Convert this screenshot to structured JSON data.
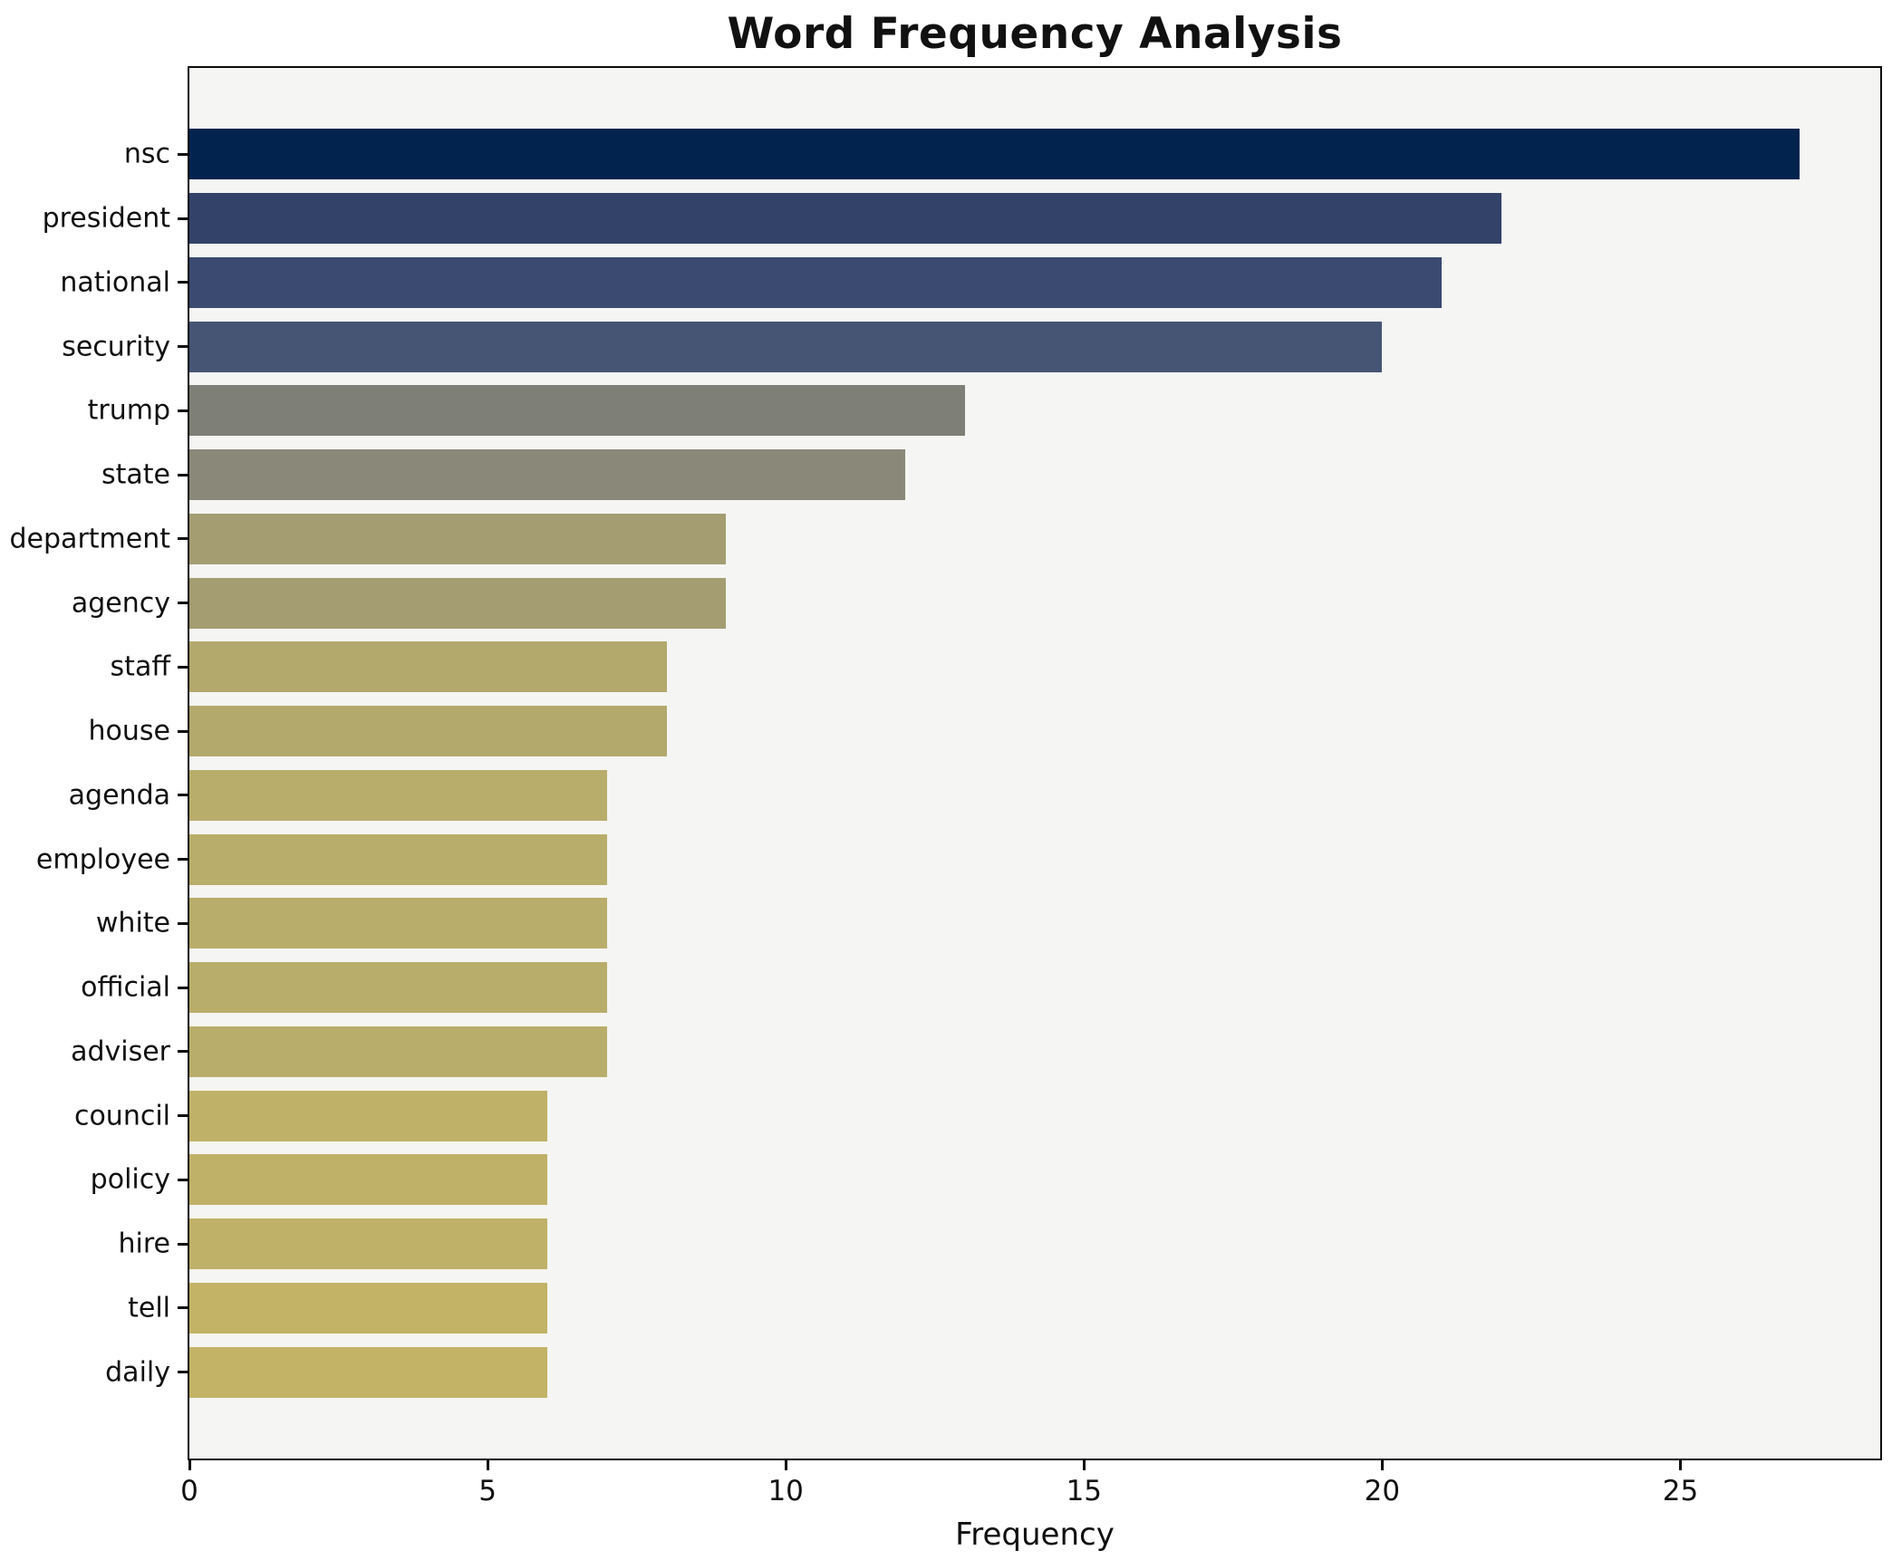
{
  "title": "Word Frequency Analysis",
  "xlabel": "Frequency",
  "chart_data": {
    "type": "bar",
    "orientation": "horizontal",
    "title": "Word Frequency Analysis",
    "xlabel": "Frequency",
    "ylabel": "",
    "categories": [
      "nsc",
      "president",
      "national",
      "security",
      "trump",
      "state",
      "department",
      "agency",
      "staff",
      "house",
      "agenda",
      "employee",
      "white",
      "official",
      "adviser",
      "council",
      "policy",
      "hire",
      "tell",
      "daily"
    ],
    "values": [
      27,
      22,
      21,
      20,
      13,
      12,
      9,
      9,
      8,
      8,
      7,
      7,
      7,
      7,
      7,
      6,
      6,
      6,
      6,
      6
    ],
    "bar_colors": [
      "#02234E",
      "#334269",
      "#3B4A70",
      "#465574",
      "#7E8077",
      "#8A8878",
      "#A49D71",
      "#A49D71",
      "#B3A96D",
      "#B3A96D",
      "#B9AD6B",
      "#B9AD6B",
      "#B9AD6B",
      "#B9AD6B",
      "#B9AD6B",
      "#C0B168",
      "#C0B168",
      "#C0B168",
      "#C2B366",
      "#C2B366"
    ],
    "xlim": [
      0,
      28.35
    ],
    "x_ticks": [
      0,
      5,
      10,
      15,
      20,
      25
    ],
    "grid": false,
    "legend": "none",
    "plot_background": "#F5F5F3",
    "figure_background": "#FFFFFF",
    "spine_color": "#0B0B0B"
  }
}
